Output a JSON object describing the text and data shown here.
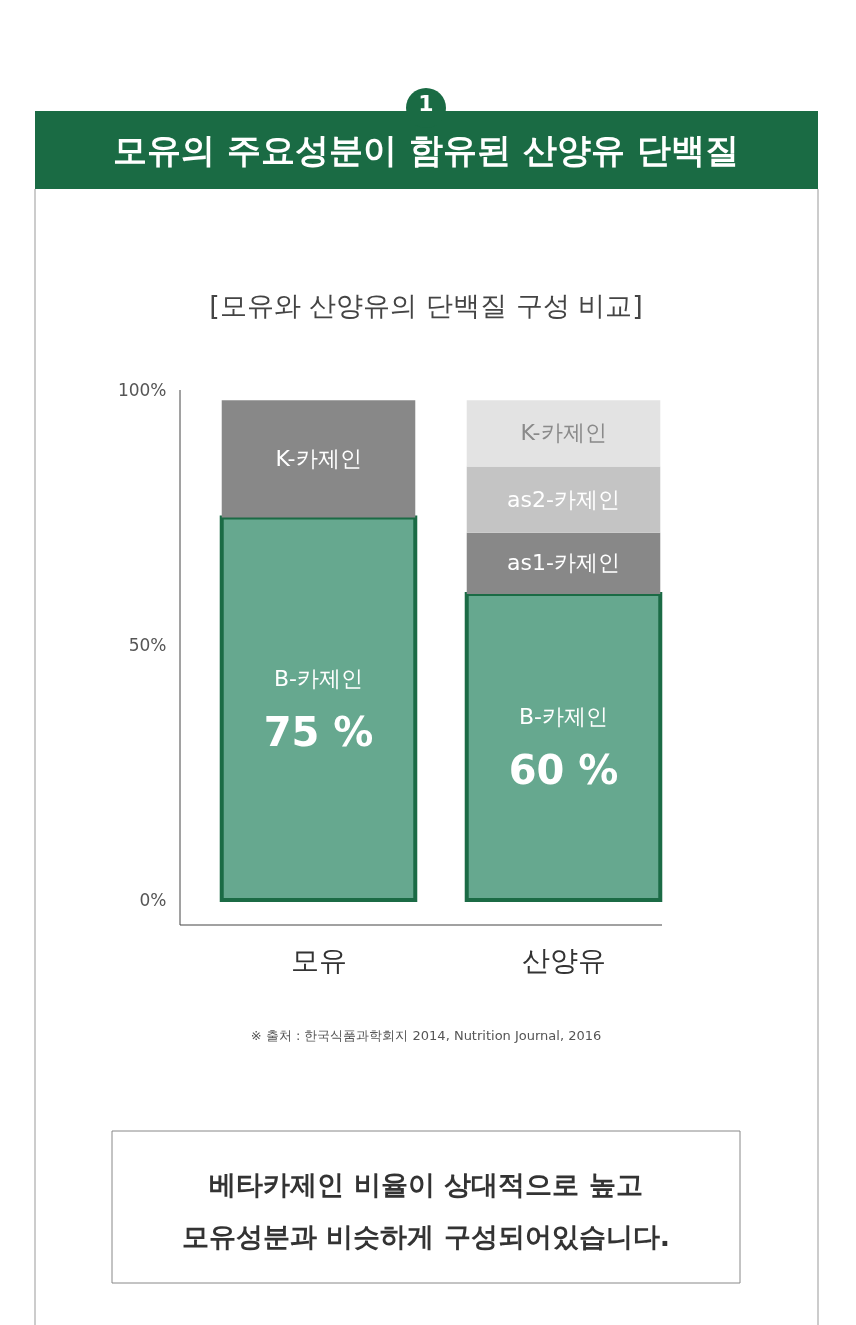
{
  "chart_data": {
    "type": "bar",
    "stacked": true,
    "title": "모유의 주요성분이 함유된 산양유 단백질",
    "subtitle": "[모유와 산양유의 단백질 구성 비교]",
    "categories": [
      "모유",
      "산양유"
    ],
    "series": [
      {
        "name": "B-카제인",
        "color": "#66a88f",
        "values": [
          75,
          60
        ],
        "value_labels": [
          "75 %",
          "60 %"
        ]
      },
      {
        "name": "as1-카제인",
        "color": "#888888",
        "values": [
          null,
          12
        ]
      },
      {
        "name": "as2-카제인",
        "color": "#c4c4c4",
        "values": [
          null,
          13
        ]
      },
      {
        "name": "K-카제인",
        "colors": [
          "#888888",
          "#e3e3e3"
        ],
        "values": [
          23,
          13
        ]
      }
    ],
    "ylim": [
      0,
      100
    ],
    "yticks": [
      {
        "value": 0,
        "label": "0%"
      },
      {
        "value": 50,
        "label": "50%"
      },
      {
        "value": 100,
        "label": "100%"
      }
    ],
    "grid": false,
    "annotations": [
      "1",
      "※ 출처 : 한국식품과학회지 2014, Nutrition Journal, 2016",
      "베타카제인 비율이 상대적으로 높고\n모유성분과 비슷하게 구성되어있습니다."
    ]
  }
}
